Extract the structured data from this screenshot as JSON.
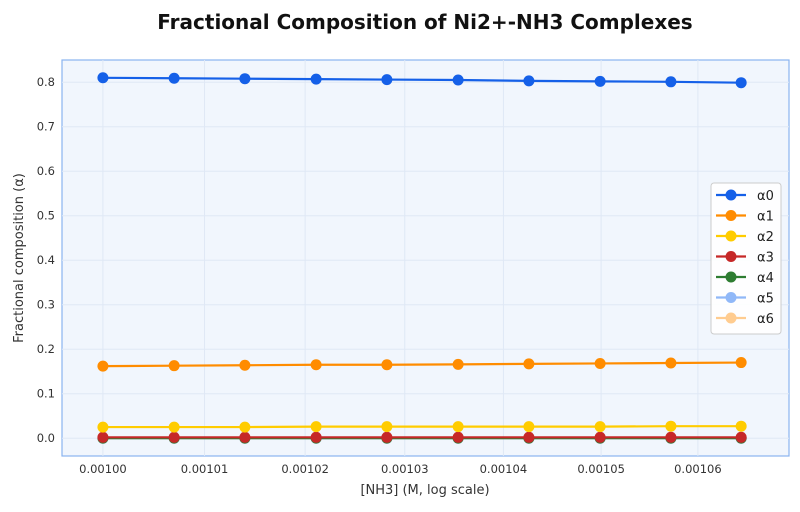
{
  "chart_data": {
    "type": "line",
    "title": "Fractional Composition of Ni2+-NH3 Complexes",
    "xlabel": "[NH3] (M, log scale)",
    "ylabel": "Fractional composition (α)",
    "xscale": "log",
    "xlim": [
      0.000996,
      0.0010695
    ],
    "ylim": [
      -0.04,
      0.85
    ],
    "xticks": [
      0.001,
      0.00101,
      0.00102,
      0.00103,
      0.00104,
      0.00105,
      0.00106
    ],
    "xtick_labels": [
      "0.00100",
      "0.00101",
      "0.00102",
      "0.00103",
      "0.00104",
      "0.00105",
      "0.00106"
    ],
    "yticks": [
      0.0,
      0.1,
      0.2,
      0.3,
      0.4,
      0.5,
      0.6,
      0.7,
      0.8
    ],
    "ytick_labels": [
      "0.0",
      "0.1",
      "0.2",
      "0.3",
      "0.4",
      "0.5",
      "0.6",
      "0.7",
      "0.8"
    ],
    "grid": true,
    "legend_position": "center-right",
    "x": [
      0.001,
      0.001007,
      0.001014,
      0.0010211,
      0.0010282,
      0.0010354,
      0.0010426,
      0.0010499,
      0.0010572,
      0.0010645
    ],
    "series": [
      {
        "name": "α0",
        "color": "#1560e8",
        "values": [
          0.81,
          0.809,
          0.808,
          0.807,
          0.806,
          0.805,
          0.803,
          0.802,
          0.801,
          0.799
        ]
      },
      {
        "name": "α1",
        "color": "#ff8c00",
        "values": [
          0.162,
          0.163,
          0.164,
          0.165,
          0.165,
          0.166,
          0.167,
          0.168,
          0.169,
          0.17
        ]
      },
      {
        "name": "α2",
        "color": "#ffcc00",
        "values": [
          0.025,
          0.025,
          0.025,
          0.026,
          0.026,
          0.026,
          0.026,
          0.026,
          0.027,
          0.027
        ]
      },
      {
        "name": "α3",
        "color": "#c62828",
        "values": [
          0.002,
          0.002,
          0.002,
          0.002,
          0.002,
          0.002,
          0.002,
          0.002,
          0.002,
          0.002
        ]
      },
      {
        "name": "α4",
        "color": "#2e7d32",
        "values": [
          0.0001,
          0.0001,
          0.0001,
          0.0001,
          0.0001,
          0.0001,
          0.0001,
          0.0001,
          0.0001,
          0.0001
        ]
      },
      {
        "name": "α5",
        "color": "#90b8f8",
        "values": [
          0,
          0,
          0,
          0,
          0,
          0,
          0,
          0,
          0,
          0
        ]
      },
      {
        "name": "α6",
        "color": "#ffcc90",
        "values": [
          0,
          0,
          0,
          0,
          0,
          0,
          0,
          0,
          0,
          0
        ]
      }
    ]
  }
}
